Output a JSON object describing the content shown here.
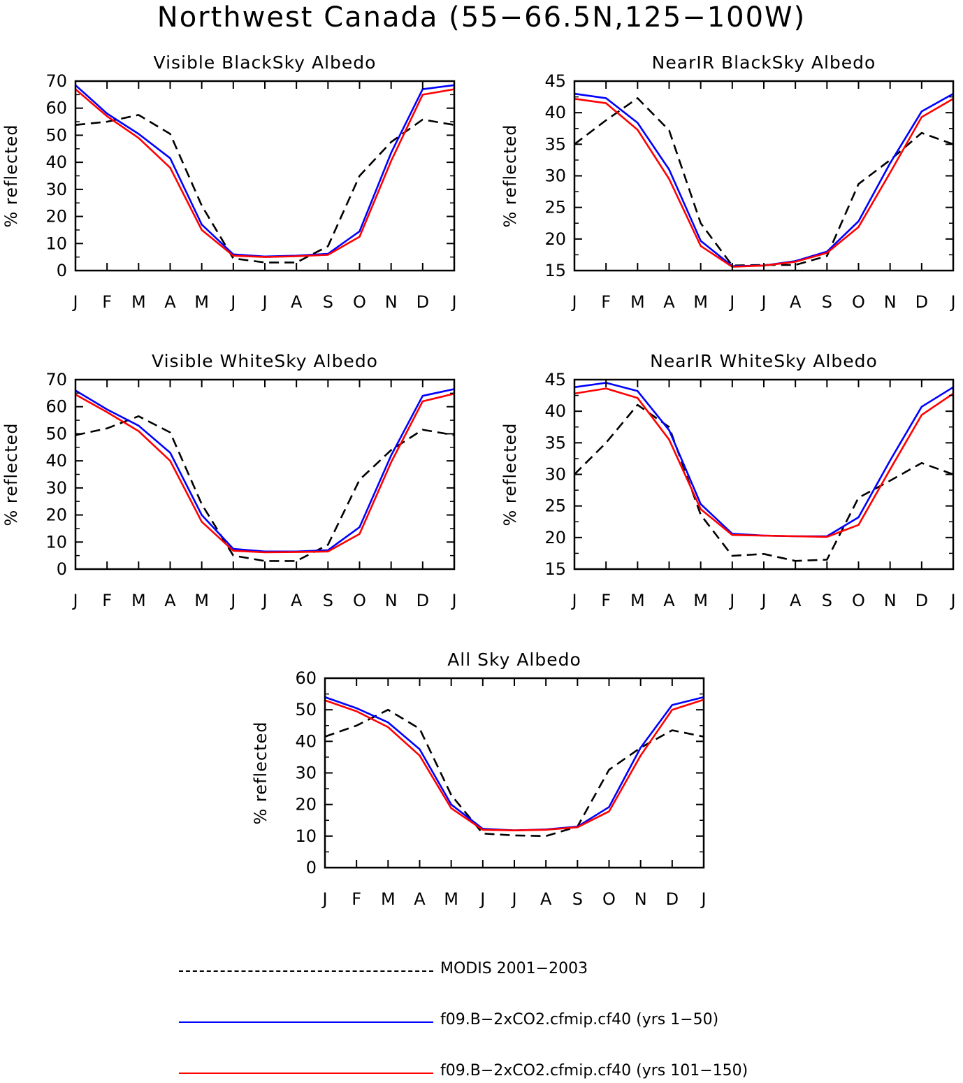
{
  "figure": {
    "title": "Northwest Canada (55−66.5N,125−100W)"
  },
  "colors": {
    "modis": "#000000",
    "run1": "#0000ff",
    "run2": "#ff0000"
  },
  "legend": [
    {
      "label": "MODIS 2001−2003",
      "style": "dashed",
      "color": "#000000"
    },
    {
      "label": "f09.B−2xCO2.cfmip.cf40 (yrs 1−50)",
      "style": "solid",
      "color": "#0000ff"
    },
    {
      "label": "f09.B−2xCO2.cfmip.cf40 (yrs 101−150)",
      "style": "solid",
      "color": "#ff0000"
    }
  ],
  "chart_data": [
    {
      "type": "line",
      "title": "Visible BlackSky Albedo",
      "ylabel": "% reflected",
      "categories": [
        "J",
        "F",
        "M",
        "A",
        "M",
        "J",
        "J",
        "A",
        "S",
        "O",
        "N",
        "D",
        "J"
      ],
      "ylim": [
        0,
        70
      ],
      "yticks": [
        0,
        10,
        20,
        30,
        40,
        50,
        60,
        70
      ],
      "series": [
        {
          "name": "MODIS 2001−2003",
          "values": [
            53.8,
            55,
            57.5,
            50.5,
            24,
            4.5,
            3,
            3,
            9,
            35,
            47.5,
            55.8,
            53.8
          ]
        },
        {
          "name": "f09.B−2xCO2.cfmip.cf40 (yrs 1−50)",
          "values": [
            68.5,
            58,
            50.5,
            41.5,
            17,
            6,
            5.2,
            5.5,
            6.2,
            14.5,
            43.5,
            67,
            68.5
          ]
        },
        {
          "name": "f09.B−2xCO2.cfmip.cf40 (yrs 101−150)",
          "values": [
            67,
            57,
            49,
            38,
            15,
            5.5,
            5,
            5.3,
            5.8,
            12.5,
            40.5,
            65,
            67
          ]
        }
      ]
    },
    {
      "type": "line",
      "title": "NearIR BlackSky Albedo",
      "ylabel": "% reflected",
      "categories": [
        "J",
        "F",
        "M",
        "A",
        "M",
        "J",
        "J",
        "A",
        "S",
        "O",
        "N",
        "D",
        "J"
      ],
      "ylim": [
        15,
        45
      ],
      "yticks": [
        15,
        20,
        25,
        30,
        35,
        40,
        45
      ],
      "series": [
        {
          "name": "MODIS 2001−2003",
          "values": [
            35,
            38.8,
            42.3,
            37.2,
            22.5,
            15.8,
            15.9,
            15.9,
            17.3,
            28.7,
            32.5,
            36.8,
            35
          ]
        },
        {
          "name": "f09.B−2xCO2.cfmip.cf40 (yrs 1−50)",
          "values": [
            43,
            42.3,
            38.4,
            31,
            19.7,
            15.7,
            15.8,
            16.5,
            18,
            22.8,
            32,
            40.2,
            43
          ]
        },
        {
          "name": "f09.B−2xCO2.cfmip.cf40 (yrs 101−150)",
          "values": [
            42.2,
            41.5,
            37.3,
            29.5,
            18.9,
            15.6,
            15.8,
            16.4,
            17.8,
            21.9,
            30.5,
            39.3,
            42.2
          ]
        }
      ]
    },
    {
      "type": "line",
      "title": "Visible WhiteSky Albedo",
      "ylabel": "% reflected",
      "categories": [
        "J",
        "F",
        "M",
        "A",
        "M",
        "J",
        "J",
        "A",
        "S",
        "O",
        "N",
        "D",
        "J"
      ],
      "ylim": [
        0,
        70
      ],
      "yticks": [
        0,
        10,
        20,
        30,
        40,
        50,
        60,
        70
      ],
      "series": [
        {
          "name": "MODIS 2001−2003",
          "values": [
            49.5,
            52,
            56.5,
            50.5,
            24,
            5,
            3,
            3,
            9,
            33,
            44,
            51.5,
            49.5
          ]
        },
        {
          "name": "f09.B−2xCO2.cfmip.cf40 (yrs 1−50)",
          "values": [
            66,
            59,
            53,
            43,
            20,
            7.5,
            6.5,
            6.5,
            7,
            15.5,
            42,
            64,
            66.5
          ]
        },
        {
          "name": "f09.B−2xCO2.cfmip.cf40 (yrs 101−150)",
          "values": [
            64.5,
            58,
            51,
            40,
            17.5,
            6.8,
            6.2,
            6.3,
            6.5,
            13,
            39.5,
            62,
            64.8
          ]
        }
      ]
    },
    {
      "type": "line",
      "title": "NearIR WhiteSky Albedo",
      "ylabel": "% reflected",
      "categories": [
        "J",
        "F",
        "M",
        "A",
        "M",
        "J",
        "J",
        "A",
        "S",
        "O",
        "N",
        "D",
        "J"
      ],
      "ylim": [
        15,
        45
      ],
      "yticks": [
        15,
        20,
        25,
        30,
        35,
        40,
        45
      ],
      "series": [
        {
          "name": "MODIS 2001−2003",
          "values": [
            30,
            35,
            41,
            37.5,
            23.6,
            17.1,
            17.4,
            16.3,
            16.5,
            26.3,
            29,
            31.8,
            30
          ]
        },
        {
          "name": "f09.B−2xCO2.cfmip.cf40 (yrs 1−50)",
          "values": [
            43.8,
            44.5,
            43.2,
            37,
            25.3,
            20.6,
            20.3,
            20.2,
            20.2,
            23.2,
            32.2,
            40.7,
            43.8
          ]
        },
        {
          "name": "f09.B−2xCO2.cfmip.cf40 (yrs 101−150)",
          "values": [
            42.8,
            43.6,
            42.1,
            35.5,
            24.5,
            20.4,
            20.3,
            20.2,
            20.1,
            22,
            30.8,
            39.4,
            42.8
          ]
        }
      ]
    },
    {
      "type": "line",
      "title": "All Sky Albedo",
      "ylabel": "% reflected",
      "categories": [
        "J",
        "F",
        "M",
        "A",
        "M",
        "J",
        "J",
        "A",
        "S",
        "O",
        "N",
        "D",
        "J"
      ],
      "ylim": [
        0,
        60
      ],
      "yticks": [
        0,
        10,
        20,
        30,
        40,
        50,
        60
      ],
      "series": [
        {
          "name": "MODIS 2001−2003",
          "values": [
            41.5,
            45,
            50,
            44,
            23,
            10.8,
            10.2,
            10,
            13,
            31,
            38,
            43.5,
            41.5
          ]
        },
        {
          "name": "f09.B−2xCO2.cfmip.cf40 (yrs 1−50)",
          "values": [
            54,
            50.5,
            46,
            37.5,
            20,
            12.3,
            11.8,
            12.1,
            13,
            19.2,
            38,
            51.5,
            54
          ]
        },
        {
          "name": "f09.B−2xCO2.cfmip.cf40 (yrs 101−150)",
          "values": [
            53,
            49.5,
            44.5,
            35.5,
            18.8,
            12,
            11.8,
            12,
            12.8,
            17.8,
            35.5,
            50,
            53.2
          ]
        }
      ]
    }
  ]
}
